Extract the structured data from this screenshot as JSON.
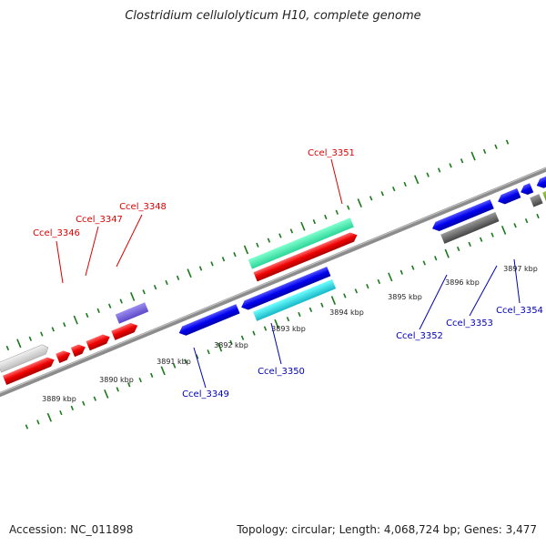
{
  "title": "Clostridium cellulolyticum H10, complete genome",
  "footer": {
    "accession": "Accession: NC_011898",
    "summary": "Topology: circular; Length: 4,068,724 bp; Genes: 3,477"
  },
  "colors": {
    "plus_label": "#dd0000",
    "minus_label": "#0000bb",
    "backbone": "#8a8a8a",
    "tick": "#1a7a1a"
  },
  "scale_labels": [
    "3889 kbp",
    "3890 kbp",
    "3891 kbp",
    "3892 kbp",
    "3893 kbp",
    "3894 kbp",
    "3895 kbp",
    "3896 kbp",
    "3897 kbp"
  ],
  "gene_labels": [
    {
      "id": "ccel-3346",
      "text": "Ccel_3346",
      "strand": "plus"
    },
    {
      "id": "ccel-3347",
      "text": "Ccel_3347",
      "strand": "plus"
    },
    {
      "id": "ccel-3348",
      "text": "Ccel_3348",
      "strand": "plus"
    },
    {
      "id": "ccel-3351",
      "text": "Ccel_3351",
      "strand": "plus"
    },
    {
      "id": "ccel-3349",
      "text": "Ccel_3349",
      "strand": "minus"
    },
    {
      "id": "ccel-3350",
      "text": "Ccel_3350",
      "strand": "minus"
    },
    {
      "id": "ccel-3352",
      "text": "Ccel_3352",
      "strand": "minus"
    },
    {
      "id": "ccel-3353",
      "text": "Ccel_3353",
      "strand": "minus"
    },
    {
      "id": "ccel-3354",
      "text": "Ccel_3354",
      "strand": "minus"
    }
  ]
}
